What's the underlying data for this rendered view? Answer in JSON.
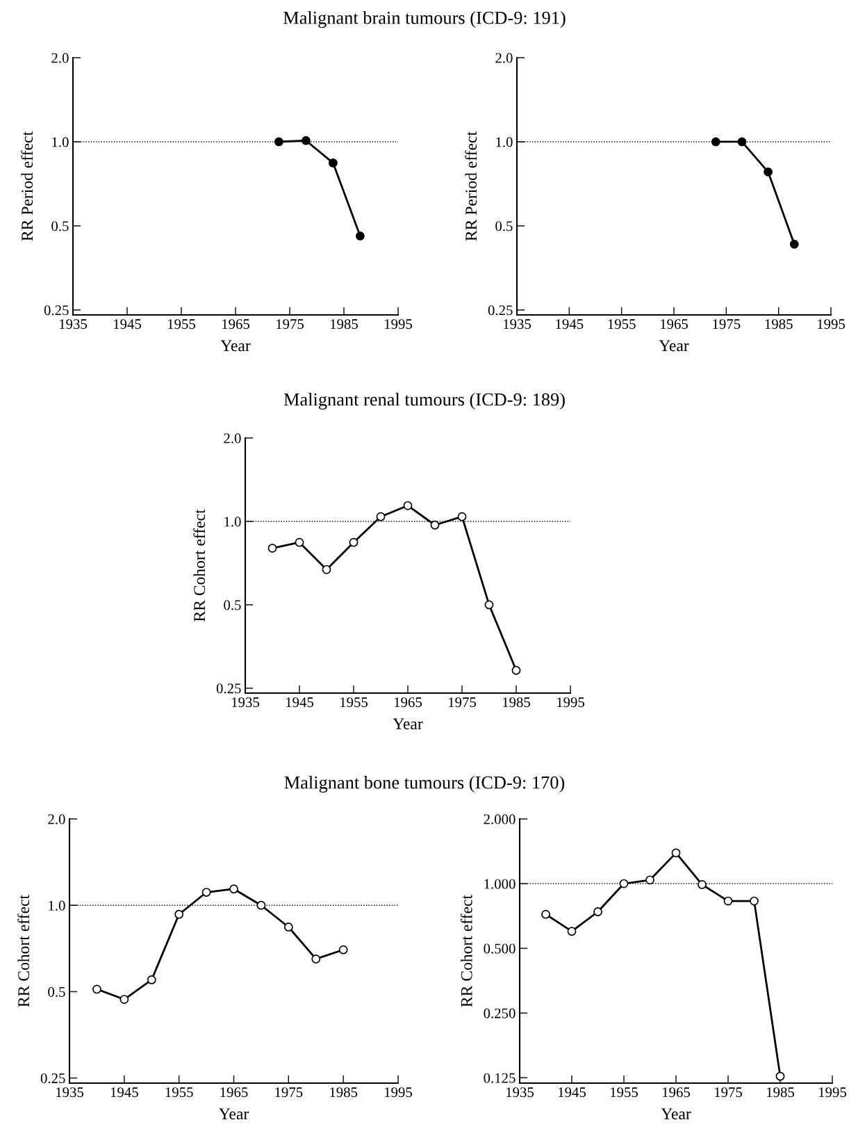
{
  "chart_data": [
    {
      "type": "line",
      "title": "Malignant brain tumours (ICD-9: 191)",
      "xlabel": "Year",
      "ylabel": "RR Period effect",
      "log": "y",
      "marker": "circle",
      "line_style": "solid",
      "grid": false,
      "legend": false,
      "x": [
        1973,
        1978,
        1983,
        1988
      ],
      "series": [
        {
          "color": "#000000",
          "values": [
            1.0,
            1.01,
            0.84,
            0.46
          ],
          "colors": [
            "#000000",
            "#000000",
            "#000000",
            "#000000"
          ]
        }
      ],
      "xlim": [
        1935,
        1995
      ],
      "xticks": [
        1935,
        1945,
        1955,
        1965,
        1975,
        1985,
        1995
      ],
      "ylim": [
        0.24,
        2.0
      ],
      "yticks": [
        {
          "value": 0.25,
          "label": "0.25"
        },
        {
          "value": 0.5,
          "label": "0.5"
        },
        {
          "value": 1,
          "label": "1.0"
        },
        {
          "value": 2,
          "label": "2.0"
        }
      ],
      "ref_lines": [
        {
          "axis": "y",
          "value": 1,
          "line_style": "dotted",
          "color": "#000000"
        }
      ]
    },
    {
      "type": "line",
      "xlabel": "Year",
      "ylabel": "RR Period effect",
      "log": "y",
      "marker": "circle",
      "line_style": "solid",
      "grid": false,
      "legend": false,
      "x": [
        1973,
        1978,
        1983,
        1988
      ],
      "series": [
        {
          "color": "#000000",
          "values": [
            1.0,
            1.0,
            0.78,
            0.43
          ],
          "colors": [
            "#000000",
            "#000000",
            "#000000",
            "#000000"
          ]
        }
      ],
      "xlim": [
        1935,
        1995
      ],
      "xticks": [
        1935,
        1945,
        1955,
        1965,
        1975,
        1985,
        1995
      ],
      "ylim": [
        0.24,
        2.0
      ],
      "yticks": [
        {
          "value": 0.25,
          "label": "0.25"
        },
        {
          "value": 0.5,
          "label": "0.5"
        },
        {
          "value": 1,
          "label": "1.0"
        },
        {
          "value": 2,
          "label": "2.0"
        }
      ],
      "ref_lines": [
        {
          "axis": "y",
          "value": 1,
          "line_style": "dotted",
          "color": "#000000"
        }
      ]
    },
    {
      "type": "line",
      "title": "Malignant renal tumours (ICD-9: 189)",
      "xlabel": "Year",
      "ylabel": "RR Cohort effect",
      "log": "y",
      "marker": "circle",
      "line_style": "solid",
      "grid": false,
      "legend": false,
      "x": [
        1940,
        1945,
        1950,
        1955,
        1960,
        1965,
        1970,
        1975,
        1980,
        1985
      ],
      "series": [
        {
          "color": "#000000",
          "values": [
            0.8,
            0.84,
            0.67,
            0.84,
            1.04,
            1.14,
            0.97,
            1.04,
            0.5,
            0.29
          ],
          "colors": [
            "#ffffff",
            "#ffffff",
            "#ffffff",
            "#ffffff",
            "#ffffff",
            "#ffffff",
            "#ffffff",
            "#ffffff",
            "#ffffff",
            "#ffffff"
          ]
        }
      ],
      "xlim": [
        1935,
        1995
      ],
      "xticks": [
        1935,
        1945,
        1955,
        1965,
        1975,
        1985,
        1995
      ],
      "ylim": [
        0.24,
        2.0
      ],
      "yticks": [
        {
          "value": 0.25,
          "label": "0.25"
        },
        {
          "value": 0.5,
          "label": "0.5"
        },
        {
          "value": 1,
          "label": "1.0"
        },
        {
          "value": 2,
          "label": "2.0"
        }
      ],
      "ref_lines": [
        {
          "axis": "y",
          "value": 1,
          "line_style": "dotted",
          "color": "#000000"
        }
      ]
    },
    {
      "type": "line",
      "title": "Malignant bone tumours (ICD-9: 170)",
      "xlabel": "Year",
      "ylabel": "RR Cohort effect",
      "log": "y",
      "marker": "circle",
      "line_style": "solid",
      "grid": false,
      "legend": false,
      "x": [
        1940,
        1945,
        1950,
        1955,
        1960,
        1965,
        1970,
        1975,
        1980,
        1985
      ],
      "series": [
        {
          "color": "#000000",
          "values": [
            0.51,
            0.47,
            0.55,
            0.93,
            1.11,
            1.14,
            1.0,
            0.84,
            0.65,
            0.7
          ],
          "colors": [
            "#ffffff",
            "#ffffff",
            "#ffffff",
            "#ffffff",
            "#ffffff",
            "#ffffff",
            "#ffffff",
            "#ffffff",
            "#ffffff",
            "#ffffff"
          ]
        }
      ],
      "xlim": [
        1935,
        1995
      ],
      "xticks": [
        1935,
        1945,
        1955,
        1965,
        1975,
        1985,
        1995
      ],
      "ylim": [
        0.24,
        2.0
      ],
      "yticks": [
        {
          "value": 0.25,
          "label": "0.25"
        },
        {
          "value": 0.5,
          "label": "0.5"
        },
        {
          "value": 1,
          "label": "1.0"
        },
        {
          "value": 2,
          "label": "2.0"
        }
      ],
      "ref_lines": [
        {
          "axis": "y",
          "value": 1,
          "line_style": "dotted",
          "color": "#000000"
        }
      ]
    },
    {
      "type": "line",
      "xlabel": "Year",
      "ylabel": "RR Cohort effect",
      "log": "y",
      "marker": "circle",
      "line_style": "solid",
      "grid": false,
      "legend": false,
      "x": [
        1940,
        1945,
        1950,
        1955,
        1960,
        1965,
        1970,
        1975,
        1980,
        1985
      ],
      "series": [
        {
          "color": "#000000",
          "values": [
            0.72,
            0.6,
            0.74,
            1.0,
            1.04,
            1.39,
            0.99,
            0.83,
            0.83,
            0.127
          ],
          "colors": [
            "#ffffff",
            "#ffffff",
            "#ffffff",
            "#ffffff",
            "#ffffff",
            "#ffffff",
            "#ffffff",
            "#ffffff",
            "#ffffff",
            "#ffffff"
          ]
        }
      ],
      "xlim": [
        1935,
        1995
      ],
      "xticks": [
        1935,
        1945,
        1955,
        1965,
        1975,
        1985,
        1995
      ],
      "ylim": [
        0.118,
        2.0
      ],
      "yticks": [
        {
          "value": 0.125,
          "label": "0.125"
        },
        {
          "value": 0.25,
          "label": "0.250"
        },
        {
          "value": 0.5,
          "label": "0.500"
        },
        {
          "value": 1,
          "label": "1.000"
        },
        {
          "value": 2,
          "label": "2.000"
        }
      ],
      "ref_lines": [
        {
          "axis": "y",
          "value": 1,
          "line_style": "dotted",
          "color": "#000000"
        }
      ]
    }
  ]
}
